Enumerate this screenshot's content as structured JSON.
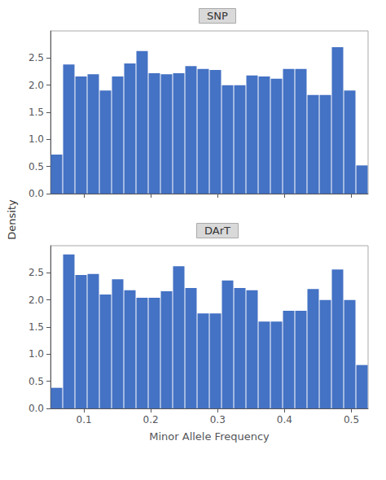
{
  "chart_data": [
    {
      "type": "histogram",
      "title": "SNP",
      "ylabel": "Density",
      "bins": [
        0.05,
        0.0682692308,
        0.0865384615,
        0.1048076923,
        0.1230769231,
        0.1413461538,
        0.1596153846,
        0.1778846154,
        0.1961538462,
        0.2144230769,
        0.2326923077,
        0.2509615385,
        0.2692307692,
        0.2875,
        0.3057692308,
        0.3240384615,
        0.3423076923,
        0.3605769231,
        0.3788461538,
        0.3971153846,
        0.4153846154,
        0.4336538462,
        0.4519230769,
        0.4701923077,
        0.4884615385,
        0.5067307692,
        0.525
      ],
      "values": [
        0.72,
        2.38,
        2.16,
        2.2,
        1.9,
        2.16,
        2.4,
        2.63,
        2.22,
        2.2,
        2.22,
        2.35,
        2.3,
        2.28,
        2.0,
        2.0,
        2.18,
        2.16,
        2.12,
        2.3,
        2.3,
        1.82,
        1.82,
        2.7,
        1.9,
        0.52
      ],
      "color": "#4472C4",
      "xlim": [
        0.05,
        0.525
      ],
      "xticks": [
        0.1,
        0.2,
        0.3,
        0.4,
        0.5
      ],
      "ylim": [
        0.0,
        3.0
      ],
      "yticks": [
        {
          "value": 0.0,
          "label": "0.0"
        },
        0.5,
        {
          "value": 1.0,
          "label": "1.0"
        },
        1.5,
        {
          "value": 2.0,
          "label": "2.0"
        },
        2.5
      ],
      "grid": false,
      "tick_labels": "y"
    },
    {
      "type": "histogram",
      "title": "DArT",
      "xlabel": "Minor Allele Frequency",
      "bins": [
        0.05,
        0.0682692308,
        0.0865384615,
        0.1048076923,
        0.1230769231,
        0.1413461538,
        0.1596153846,
        0.1778846154,
        0.1961538462,
        0.2144230769,
        0.2326923077,
        0.2509615385,
        0.2692307692,
        0.2875,
        0.3057692308,
        0.3240384615,
        0.3423076923,
        0.3605769231,
        0.3788461538,
        0.3971153846,
        0.4153846154,
        0.4336538462,
        0.4519230769,
        0.4701923077,
        0.4884615385,
        0.5067307692,
        0.525
      ],
      "values": [
        0.38,
        2.84,
        2.46,
        2.48,
        2.1,
        2.38,
        2.18,
        2.04,
        2.04,
        2.16,
        2.62,
        2.22,
        1.75,
        1.75,
        2.36,
        2.22,
        2.18,
        1.6,
        1.6,
        1.8,
        1.8,
        2.2,
        2.0,
        2.56,
        2.0,
        0.8
      ],
      "color": "#4472C4",
      "xlim": [
        0.05,
        0.525
      ],
      "xticks": [
        0.1,
        0.2,
        0.3,
        0.4,
        0.5
      ],
      "ylim": [
        0.0,
        3.0
      ],
      "yticks": [
        {
          "value": 0.0,
          "label": "0.0"
        },
        0.5,
        {
          "value": 1.0,
          "label": "1.0"
        },
        1.5,
        {
          "value": 2.0,
          "label": "2.0"
        },
        2.5
      ],
      "grid": false
    }
  ]
}
